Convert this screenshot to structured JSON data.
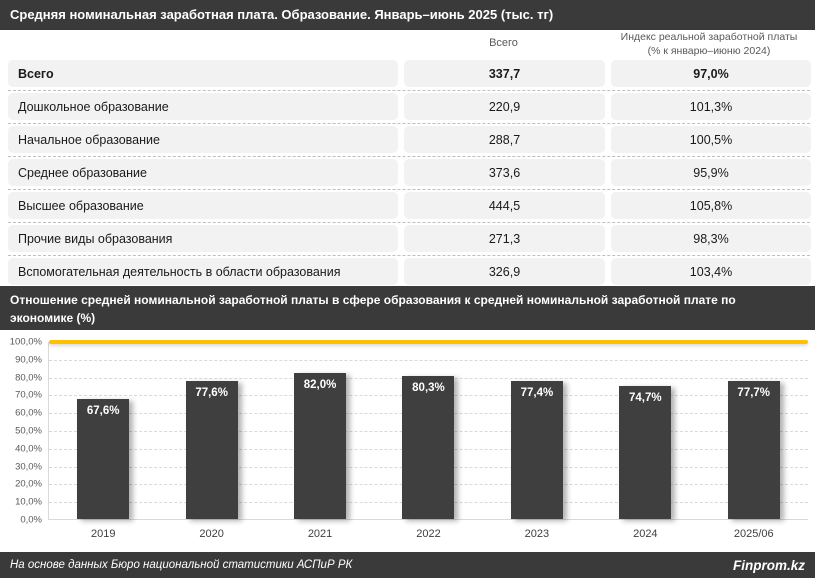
{
  "header": {
    "title": "Средняя номинальная заработная плата. Образование. Январь–июнь 2025 (тыс. тг)"
  },
  "table": {
    "col_headers": {
      "total": "Всего",
      "index_line1": "Индекс реальной заработной платы",
      "index_line2": "(% к январю–июню 2024)"
    },
    "rows": [
      {
        "label": "Всего",
        "value": "337,7",
        "index": "97,0%",
        "bold": true
      },
      {
        "label": "Дошкольное образование",
        "value": "220,9",
        "index": "101,3%",
        "bold": false
      },
      {
        "label": "Начальное образование",
        "value": "288,7",
        "index": "100,5%",
        "bold": false
      },
      {
        "label": "Среднее образование",
        "value": "373,6",
        "index": "95,9%",
        "bold": false
      },
      {
        "label": "Высшее образование",
        "value": "444,5",
        "index": "105,8%",
        "bold": false
      },
      {
        "label": "Прочие виды образования",
        "value": "271,3",
        "index": "98,3%",
        "bold": false
      },
      {
        "label": "Вспомогательная деятельность в области образования",
        "value": "326,9",
        "index": "103,4%",
        "bold": false
      }
    ]
  },
  "chart_header": {
    "title": "Отношение средней номинальной заработной платы в сфере образования к средней номинальной заработной плате по экономике (%)"
  },
  "chart_data": {
    "type": "bar",
    "title": "Отношение средней номинальной заработной платы в сфере образования к средней номинальной заработной плате по экономике (%)",
    "categories": [
      "2019",
      "2020",
      "2021",
      "2022",
      "2023",
      "2024",
      "2025/06"
    ],
    "values": [
      67.6,
      77.6,
      82.0,
      80.3,
      77.4,
      74.7,
      77.7
    ],
    "value_labels": [
      "67,6%",
      "77,6%",
      "82,0%",
      "80,3%",
      "77,4%",
      "74,7%",
      "77,7%"
    ],
    "xlabel": "",
    "ylabel": "",
    "ylim": [
      0,
      100
    ],
    "ytick_labels": [
      "100,0%",
      "90,0%",
      "80,0%",
      "70,0%",
      "60,0%",
      "50,0%",
      "40,0%",
      "30,0%",
      "20,0%",
      "10,0%",
      "0,0%"
    ],
    "grid": "horizontal-dashed",
    "legend": "none",
    "reference_line": {
      "value": 100,
      "color": "#ffc000"
    },
    "bar_color": "#3f3f3f",
    "label_position": "inside-top-white"
  },
  "footer": {
    "source": "На основе данных Бюро национальной статистики АСПиР РК",
    "brand": "Finprom.kz"
  },
  "colors": {
    "header_bg": "#3a3a3a",
    "bar": "#3f3f3f",
    "accent_yellow": "#ffc000",
    "cell_bg": "#f2f2f2",
    "separator": "#bfbfbf",
    "gridline": "#d9d9d9",
    "muted_text": "#595959"
  }
}
